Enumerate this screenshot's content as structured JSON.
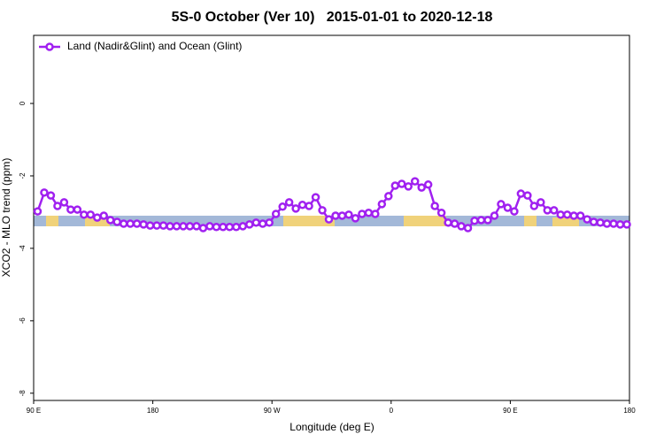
{
  "chart_data": {
    "type": "line",
    "title": "5S-0 October (Ver 10)   2015-01-01 to 2020-12-18",
    "x_label": "Longitude (deg E)",
    "y_label": "XCO2 - MLO trend (ppm)",
    "xlim": [
      90,
      540
    ],
    "ylim": [
      -8.2,
      1.88
    ],
    "xticks": [
      {
        "value": 90,
        "label": "90 E"
      },
      180,
      {
        "value": 270,
        "label": "90 W"
      },
      {
        "value": 360,
        "label": "0"
      },
      {
        "value": 450,
        "label": "90 E"
      },
      {
        "value": 540,
        "label": "180"
      }
    ],
    "yticks": [
      0,
      -2,
      -4,
      -6,
      -8
    ],
    "legend": "top-left",
    "x": [
      93,
      98,
      103,
      108,
      113,
      118,
      123,
      128,
      133,
      138,
      143,
      148,
      153,
      158,
      163,
      168,
      173,
      178,
      183,
      188,
      193,
      198,
      203,
      208,
      213,
      218,
      223,
      228,
      233,
      238,
      243,
      248,
      253,
      258,
      263,
      268,
      273,
      278,
      283,
      288,
      293,
      298,
      303,
      308,
      313,
      318,
      323,
      328,
      333,
      338,
      343,
      348,
      353,
      358,
      363,
      368,
      373,
      378,
      383,
      388,
      393,
      398,
      403,
      408,
      413,
      418,
      423,
      428,
      433,
      438,
      443,
      448,
      453,
      458,
      463,
      468,
      473,
      478,
      483,
      488,
      493,
      498,
      503,
      508,
      513,
      518,
      523,
      528,
      533,
      538
    ],
    "series": [
      {
        "name": "Land (Nadir&Glint) and Ocean (Glint)",
        "color": "#a020f0",
        "values": [
          -2.98,
          -2.46,
          -2.54,
          -2.83,
          -2.73,
          -2.93,
          -2.93,
          -3.07,
          -3.07,
          -3.15,
          -3.1,
          -3.22,
          -3.27,
          -3.32,
          -3.32,
          -3.32,
          -3.34,
          -3.37,
          -3.37,
          -3.37,
          -3.39,
          -3.39,
          -3.39,
          -3.39,
          -3.39,
          -3.44,
          -3.39,
          -3.41,
          -3.41,
          -3.41,
          -3.41,
          -3.39,
          -3.34,
          -3.29,
          -3.32,
          -3.29,
          -3.05,
          -2.85,
          -2.73,
          -2.9,
          -2.8,
          -2.83,
          -2.59,
          -2.95,
          -3.2,
          -3.1,
          -3.1,
          -3.07,
          -3.17,
          -3.05,
          -3.02,
          -3.05,
          -2.78,
          -2.56,
          -2.27,
          -2.22,
          -2.29,
          -2.15,
          -2.32,
          -2.24,
          -2.83,
          -3.02,
          -3.29,
          -3.32,
          -3.39,
          -3.44,
          -3.24,
          -3.22,
          -3.22,
          -3.1,
          -2.78,
          -2.88,
          -2.98,
          -2.49,
          -2.54,
          -2.83,
          -2.73,
          -2.95,
          -2.95,
          -3.07,
          -3.07,
          -3.1,
          -3.1,
          -3.2,
          -3.27,
          -3.29,
          -3.32,
          -3.32,
          -3.34,
          -3.34
        ]
      }
    ]
  }
}
